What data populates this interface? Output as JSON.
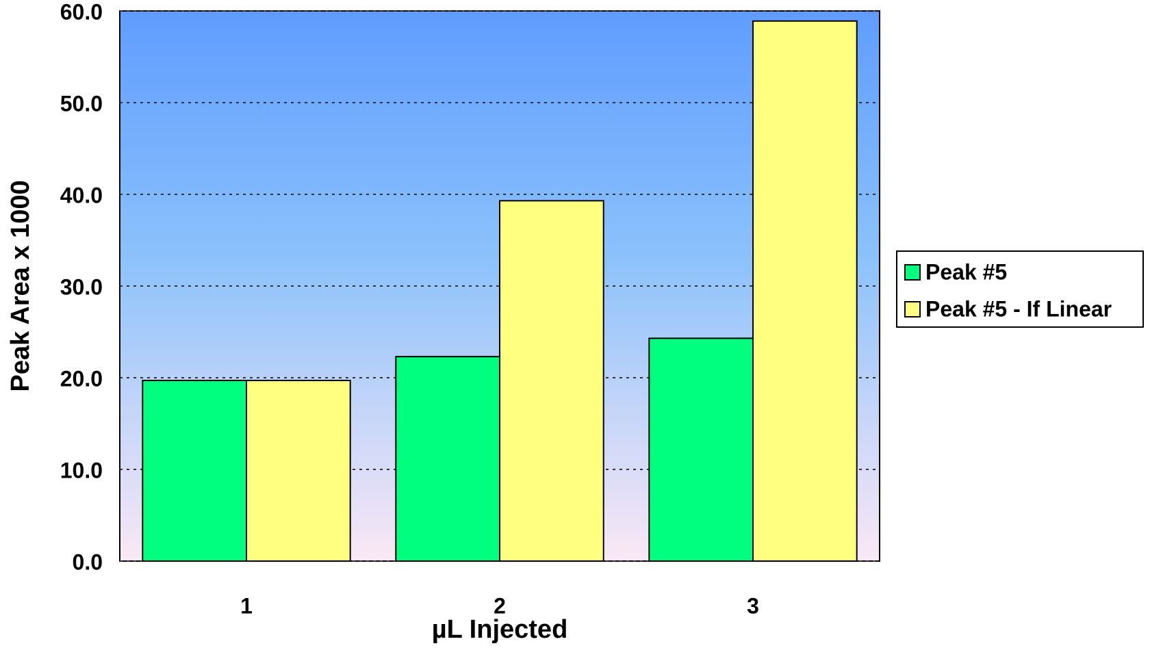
{
  "chart_data": {
    "type": "bar",
    "x_label": "µL Injected",
    "y_label": "Peak Area x 1000",
    "categories": [
      "1",
      "2",
      "3"
    ],
    "series": [
      {
        "name": "Peak #5",
        "color": "#00ff7f",
        "values": [
          19.7,
          22.3,
          24.3
        ]
      },
      {
        "name": "Peak #5 - If Linear",
        "color": "#ffff80",
        "values": [
          19.7,
          39.3,
          58.9
        ]
      }
    ],
    "ylim": [
      0,
      60
    ],
    "yticks": [
      {
        "value": 0,
        "label": "0.0"
      },
      {
        "value": 10,
        "label": "10.0"
      },
      {
        "value": 20,
        "label": "20.0"
      },
      {
        "value": 30,
        "label": "30.0"
      },
      {
        "value": 40,
        "label": "40.0"
      },
      {
        "value": 50,
        "label": "50.0"
      },
      {
        "value": 60,
        "label": "60.0"
      }
    ],
    "grid": true,
    "legend": "right"
  }
}
